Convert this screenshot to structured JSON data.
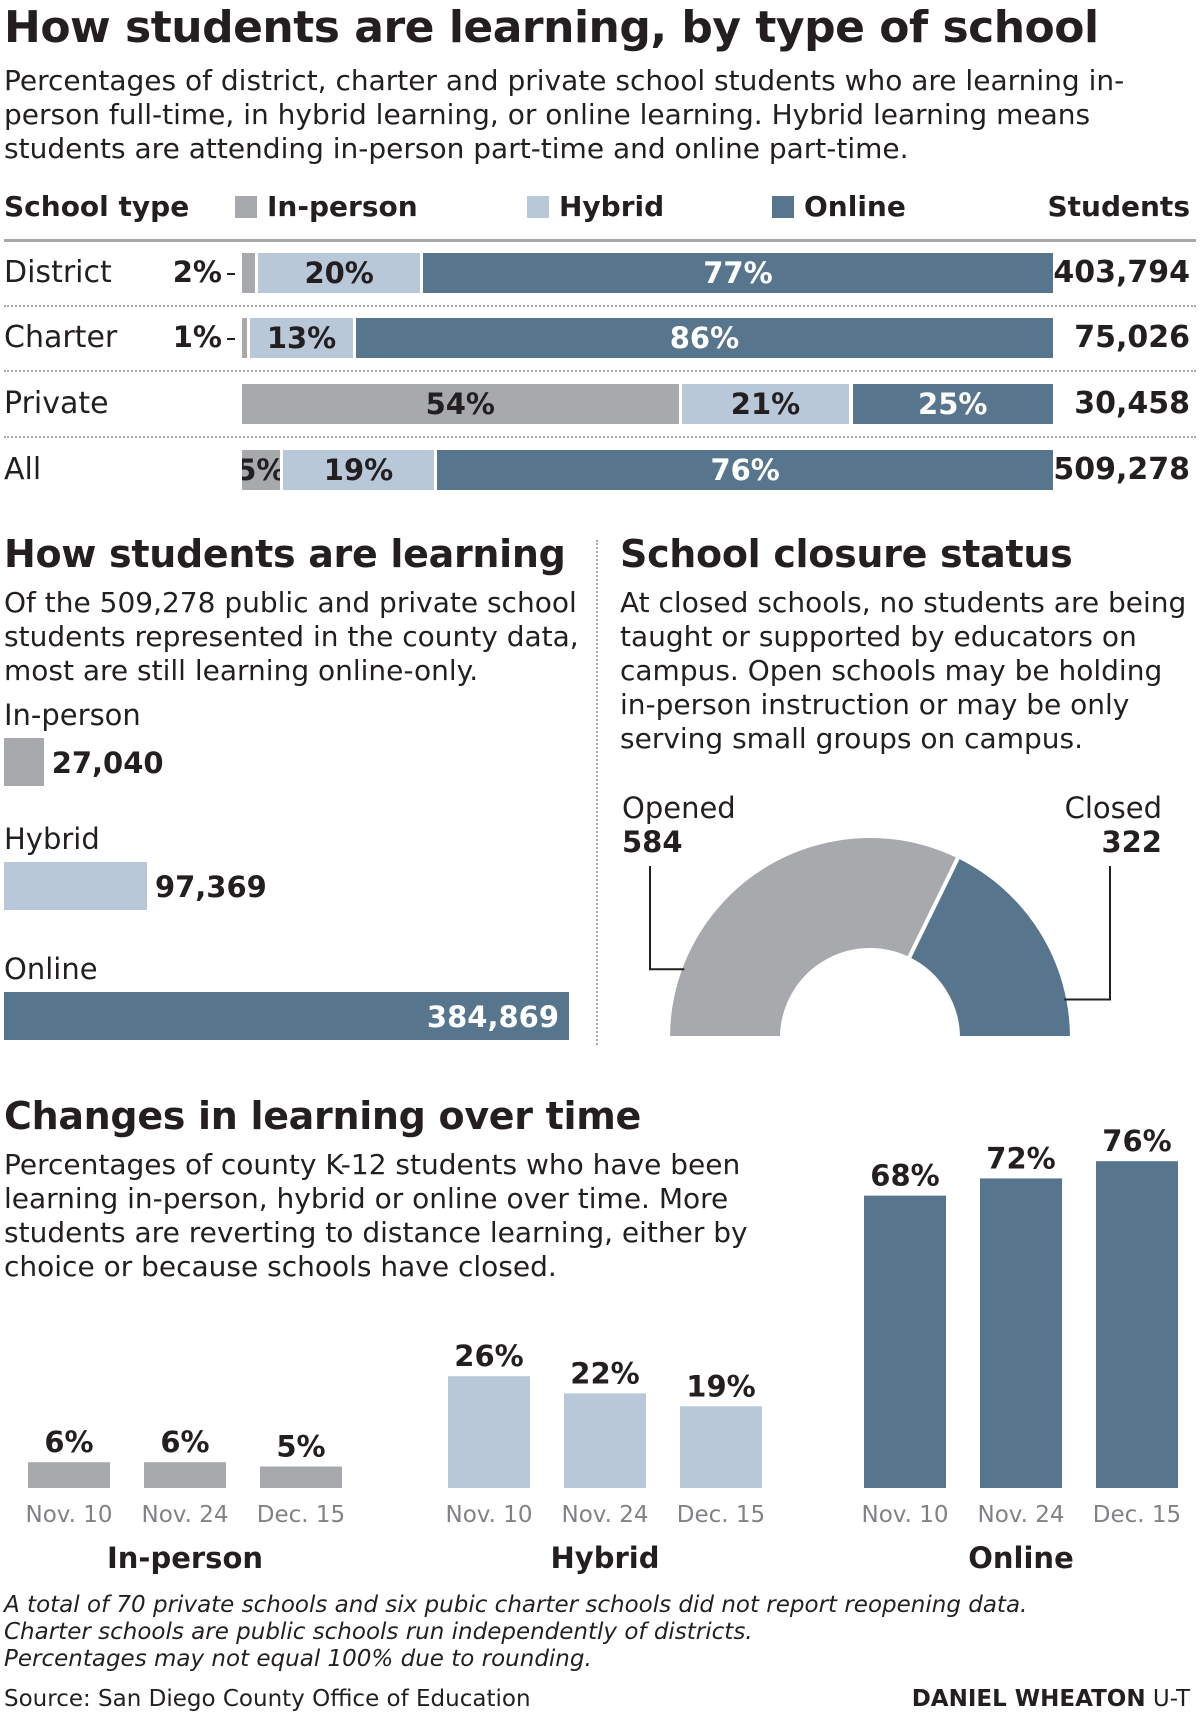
{
  "title": "How students are learning, by type of school",
  "subtitle": "Percentages of district, charter and private school students who are learning in-person full-time, in hybrid learning, or online learning. Hybrid learning means students are attending in-person part-time and online part-time.",
  "colors": {
    "inperson": "#a7a9ac",
    "hybrid": "#b8c8d9",
    "online": "#58758e"
  },
  "table_header": {
    "school_type": "School type",
    "inperson": "In-person",
    "hybrid": "Hybrid",
    "online": "Online",
    "students": "Students"
  },
  "chart_data": [
    {
      "type": "bar",
      "stacked": true,
      "orientation": "horizontal",
      "title": "How students are learning, by type of school",
      "categories": [
        "District",
        "Charter",
        "Private",
        "All"
      ],
      "series": [
        {
          "name": "In-person",
          "values": [
            2,
            1,
            54,
            5
          ],
          "labels": [
            "2%",
            "1%",
            "54%",
            "5%"
          ]
        },
        {
          "name": "Hybrid",
          "values": [
            20,
            13,
            21,
            19
          ],
          "labels": [
            "20%",
            "13%",
            "21%",
            "19%"
          ]
        },
        {
          "name": "Online",
          "values": [
            77,
            86,
            25,
            76
          ],
          "labels": [
            "77%",
            "86%",
            "25%",
            "76%"
          ]
        }
      ],
      "students": [
        "403,794",
        "75,026",
        "30,458",
        "509,278"
      ],
      "legend": "top"
    },
    {
      "type": "bar",
      "orientation": "horizontal",
      "title": "How students are learning",
      "categories": [
        "In-person",
        "Hybrid",
        "Online"
      ],
      "values": [
        27040,
        97369,
        384869
      ],
      "labels": [
        "27,040",
        "97,369",
        "384,869"
      ]
    },
    {
      "type": "pie",
      "semicircle": true,
      "title": "School closure status",
      "categories": [
        "Opened",
        "Closed"
      ],
      "values": [
        584,
        322
      ],
      "labels": [
        "584",
        "322"
      ]
    },
    {
      "type": "bar",
      "title": "Changes in learning over time",
      "groups": [
        {
          "name": "In-person",
          "x": [
            "Nov. 10",
            "Nov. 24",
            "Dec. 15"
          ],
          "values": [
            6,
            6,
            5
          ],
          "labels": [
            "6%",
            "6%",
            "5%"
          ]
        },
        {
          "name": "Hybrid",
          "x": [
            "Nov. 10",
            "Nov. 24",
            "Dec. 15"
          ],
          "values": [
            26,
            22,
            19
          ],
          "labels": [
            "26%",
            "22%",
            "19%"
          ]
        },
        {
          "name": "Online",
          "x": [
            "Nov. 10",
            "Nov. 24",
            "Dec. 15"
          ],
          "values": [
            68,
            72,
            76
          ],
          "labels": [
            "68%",
            "72%",
            "76%"
          ]
        }
      ]
    }
  ],
  "section2": {
    "title": "How students are learning",
    "text": "Of the 509,278 public and private school students represented in the county data, most are still learning online-only."
  },
  "section3": {
    "title": "School closure status",
    "text": "At closed schools, no students are being taught or supported by educators on campus. Open schools may be holding in-person instruction or may be only serving small groups on campus."
  },
  "section4": {
    "title": "Changes in learning over time",
    "text": "Percentages of county K-12 students who have been learning in-person, hybrid or online over time. More students are reverting to distance learning, either by choice or because schools have closed."
  },
  "footnotes": [
    "A total of 70 private schools and six pubic charter schools did not report reopening data.",
    "Charter schools are public schools run independently of districts.",
    "Percentages may not equal 100% due to rounding."
  ],
  "source": "Source: San Diego County Office of Education",
  "credit_name": "DANIEL WHEATON",
  "credit_org": "U-T"
}
